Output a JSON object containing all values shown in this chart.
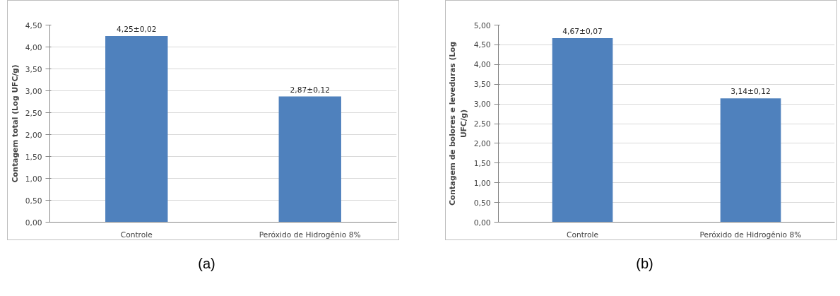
{
  "chart_data": [
    {
      "type": "bar",
      "categories": [
        "Controle",
        "Peróxido de Hidrogênio 8%"
      ],
      "values": [
        4.25,
        2.87
      ],
      "value_labels": [
        "4,25±0,02",
        "2,87±0,12"
      ],
      "color": "#4f81bd",
      "ylabel": "Contagem total (Log UFC/g)",
      "ylim": [
        0,
        4.5
      ],
      "yticks": [
        {
          "value": 0,
          "label": "0,00"
        },
        {
          "value": 0.5,
          "label": "0,50"
        },
        {
          "value": 1,
          "label": "1,00"
        },
        {
          "value": 1.5,
          "label": "1,50"
        },
        {
          "value": 2,
          "label": "2,00"
        },
        {
          "value": 2.5,
          "label": "2,50"
        },
        {
          "value": 3,
          "label": "3,00"
        },
        {
          "value": 3.5,
          "label": "3,50"
        },
        {
          "value": 4,
          "label": "4,00"
        },
        {
          "value": 4.5,
          "label": "4,50"
        }
      ],
      "grid": "y",
      "annotations": [
        "(a)"
      ]
    },
    {
      "type": "bar",
      "categories": [
        "Controle",
        "Peróxido de Hidrogênio 8%"
      ],
      "values": [
        4.67,
        3.14
      ],
      "value_labels": [
        "4,67±0,07",
        "3,14±0,12"
      ],
      "color": "#4f81bd",
      "ylabel": "Contagem de bolores e leveduras (Log UFC/g)",
      "ylim": [
        0,
        5
      ],
      "yticks": [
        {
          "value": 0,
          "label": "0,00"
        },
        {
          "value": 0.5,
          "label": "0,50"
        },
        {
          "value": 1,
          "label": "1,00"
        },
        {
          "value": 1.5,
          "label": "1,50"
        },
        {
          "value": 2,
          "label": "2,00"
        },
        {
          "value": 2.5,
          "label": "2,50"
        },
        {
          "value": 3,
          "label": "3,00"
        },
        {
          "value": 3.5,
          "label": "3,50"
        },
        {
          "value": 4,
          "label": "4,00"
        },
        {
          "value": 4.5,
          "label": "4,50"
        },
        {
          "value": 5,
          "label": "5,00"
        }
      ],
      "grid": "y",
      "annotations": [
        "(b)"
      ]
    }
  ]
}
